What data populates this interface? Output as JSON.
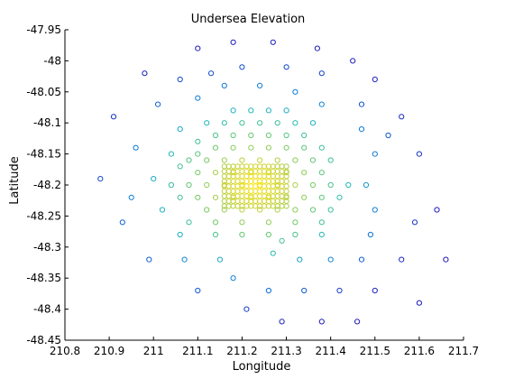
{
  "chart_data": {
    "type": "scatter",
    "title": "Undersea Elevation",
    "xlabel": "Longitude",
    "ylabel": "Latitude",
    "xlim": [
      210.8,
      211.7
    ],
    "ylim": [
      -48.45,
      -47.95
    ],
    "xticks": [
      210.8,
      210.9,
      211,
      211.1,
      211.2,
      211.3,
      211.4,
      211.5,
      211.6,
      211.7
    ],
    "xtick_labels": [
      "210.8",
      "210.9",
      "211",
      "211.1",
      "211.2",
      "211.3",
      "211.4",
      "211.5",
      "211.6",
      "211.7"
    ],
    "yticks": [
      -47.95,
      -48,
      -48.05,
      -48.1,
      -48.15,
      -48.2,
      -48.25,
      -48.3,
      -48.35,
      -48.4,
      -48.45
    ],
    "ytick_labels": [
      "-47.95",
      "-48",
      "-48.05",
      "-48.1",
      "-48.15",
      "-48.2",
      "-48.25",
      "-48.3",
      "-48.35",
      "-48.4",
      "-48.45"
    ],
    "grid": false,
    "marker": "circle-open",
    "colormap": [
      "#1f1ab8",
      "#0a6fd8",
      "#1fb6c0",
      "#6fc968",
      "#c9d23a",
      "#ffe81a"
    ],
    "center": [
      211.23,
      -48.2
    ],
    "points": [
      [
        211.18,
        -47.97
      ],
      [
        211.27,
        -47.97
      ],
      [
        211.1,
        -47.98
      ],
      [
        211.37,
        -47.98
      ],
      [
        210.98,
        -48.02
      ],
      [
        211.45,
        -48.0
      ],
      [
        211.06,
        -48.03
      ],
      [
        211.13,
        -48.02
      ],
      [
        211.2,
        -48.01
      ],
      [
        211.3,
        -48.01
      ],
      [
        211.38,
        -48.02
      ],
      [
        211.5,
        -48.03
      ],
      [
        211.16,
        -48.04
      ],
      [
        211.24,
        -48.04
      ],
      [
        211.32,
        -48.05
      ],
      [
        211.01,
        -48.07
      ],
      [
        211.1,
        -48.06
      ],
      [
        211.38,
        -48.07
      ],
      [
        211.47,
        -48.07
      ],
      [
        210.91,
        -48.09
      ],
      [
        211.18,
        -48.08
      ],
      [
        211.22,
        -48.08
      ],
      [
        211.26,
        -48.08
      ],
      [
        211.3,
        -48.08
      ],
      [
        211.56,
        -48.09
      ],
      [
        211.06,
        -48.11
      ],
      [
        211.12,
        -48.1
      ],
      [
        211.16,
        -48.1
      ],
      [
        211.2,
        -48.1
      ],
      [
        211.24,
        -48.1
      ],
      [
        211.28,
        -48.1
      ],
      [
        211.32,
        -48.1
      ],
      [
        211.36,
        -48.1
      ],
      [
        211.47,
        -48.11
      ],
      [
        211.14,
        -48.12
      ],
      [
        211.18,
        -48.12
      ],
      [
        211.22,
        -48.12
      ],
      [
        211.26,
        -48.12
      ],
      [
        211.3,
        -48.12
      ],
      [
        211.34,
        -48.12
      ],
      [
        211.53,
        -48.12
      ],
      [
        211.1,
        -48.13
      ],
      [
        211.14,
        -48.14
      ],
      [
        211.18,
        -48.14
      ],
      [
        211.22,
        -48.14
      ],
      [
        211.26,
        -48.14
      ],
      [
        211.3,
        -48.14
      ],
      [
        211.34,
        -48.14
      ],
      [
        211.38,
        -48.14
      ],
      [
        210.96,
        -48.14
      ],
      [
        211.04,
        -48.15
      ],
      [
        211.1,
        -48.15
      ],
      [
        211.5,
        -48.15
      ],
      [
        211.6,
        -48.15
      ],
      [
        211.08,
        -48.16
      ],
      [
        211.12,
        -48.16
      ],
      [
        211.16,
        -48.16
      ],
      [
        211.2,
        -48.16
      ],
      [
        211.24,
        -48.16
      ],
      [
        211.28,
        -48.16
      ],
      [
        211.32,
        -48.16
      ],
      [
        211.36,
        -48.16
      ],
      [
        211.4,
        -48.16
      ],
      [
        211.06,
        -48.17
      ],
      [
        211.1,
        -48.18
      ],
      [
        211.14,
        -48.18
      ],
      [
        211.18,
        -48.18
      ],
      [
        211.22,
        -48.18
      ],
      [
        211.26,
        -48.18
      ],
      [
        211.3,
        -48.18
      ],
      [
        211.34,
        -48.18
      ],
      [
        211.38,
        -48.18
      ],
      [
        210.88,
        -48.19
      ],
      [
        211.0,
        -48.19
      ],
      [
        211.04,
        -48.2
      ],
      [
        211.08,
        -48.2
      ],
      [
        211.12,
        -48.2
      ],
      [
        211.16,
        -48.2
      ],
      [
        211.2,
        -48.2
      ],
      [
        211.24,
        -48.2
      ],
      [
        211.28,
        -48.2
      ],
      [
        211.32,
        -48.2
      ],
      [
        211.36,
        -48.2
      ],
      [
        211.4,
        -48.2
      ],
      [
        211.44,
        -48.2
      ],
      [
        211.48,
        -48.2
      ],
      [
        211.1,
        -48.22
      ],
      [
        211.14,
        -48.22
      ],
      [
        211.18,
        -48.22
      ],
      [
        211.22,
        -48.22
      ],
      [
        211.26,
        -48.22
      ],
      [
        211.3,
        -48.22
      ],
      [
        211.34,
        -48.22
      ],
      [
        211.38,
        -48.22
      ],
      [
        211.42,
        -48.22
      ],
      [
        210.95,
        -48.22
      ],
      [
        211.06,
        -48.22
      ],
      [
        211.12,
        -48.24
      ],
      [
        211.16,
        -48.24
      ],
      [
        211.2,
        -48.24
      ],
      [
        211.24,
        -48.24
      ],
      [
        211.28,
        -48.24
      ],
      [
        211.32,
        -48.24
      ],
      [
        211.36,
        -48.24
      ],
      [
        211.4,
        -48.24
      ],
      [
        211.02,
        -48.24
      ],
      [
        211.5,
        -48.24
      ],
      [
        211.64,
        -48.24
      ],
      [
        210.93,
        -48.26
      ],
      [
        211.08,
        -48.26
      ],
      [
        211.14,
        -48.26
      ],
      [
        211.2,
        -48.26
      ],
      [
        211.26,
        -48.26
      ],
      [
        211.32,
        -48.26
      ],
      [
        211.38,
        -48.26
      ],
      [
        211.59,
        -48.26
      ],
      [
        211.06,
        -48.28
      ],
      [
        211.14,
        -48.28
      ],
      [
        211.2,
        -48.28
      ],
      [
        211.26,
        -48.28
      ],
      [
        211.32,
        -48.28
      ],
      [
        211.38,
        -48.28
      ],
      [
        211.49,
        -48.28
      ],
      [
        211.29,
        -48.29
      ],
      [
        210.99,
        -48.32
      ],
      [
        211.07,
        -48.32
      ],
      [
        211.15,
        -48.32
      ],
      [
        211.27,
        -48.31
      ],
      [
        211.33,
        -48.32
      ],
      [
        211.4,
        -48.32
      ],
      [
        211.47,
        -48.32
      ],
      [
        211.56,
        -48.32
      ],
      [
        211.66,
        -48.32
      ],
      [
        211.18,
        -48.35
      ],
      [
        211.1,
        -48.37
      ],
      [
        211.26,
        -48.37
      ],
      [
        211.34,
        -48.37
      ],
      [
        211.42,
        -48.37
      ],
      [
        211.5,
        -48.37
      ],
      [
        211.6,
        -48.39
      ],
      [
        211.21,
        -48.4
      ],
      [
        211.29,
        -48.42
      ],
      [
        211.38,
        -48.42
      ],
      [
        211.46,
        -48.42
      ]
    ]
  }
}
